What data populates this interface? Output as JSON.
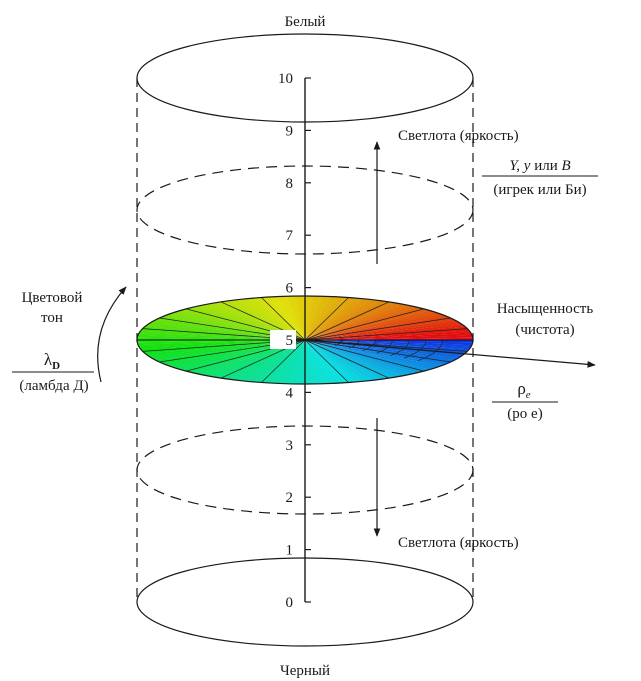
{
  "top_label": "Белый",
  "bottom_label": "Черный",
  "scale_ticks": [
    "0",
    "1",
    "2",
    "3",
    "4",
    "5",
    "6",
    "7",
    "8",
    "9",
    "10"
  ],
  "lightness_up": {
    "label": "Светлота  (яркость)"
  },
  "lightness_down": {
    "label": "Светлота  (яркость)"
  },
  "lightness_symbol": {
    "symbols": "Y, y",
    "connector": " или ",
    "b_symbol": "B",
    "reading": "(игрек или Би)"
  },
  "hue": {
    "line1": "Цветовой",
    "line2": "тон",
    "symbol": "λ",
    "subscript": "D",
    "reading": "(ламбда Д)"
  },
  "saturation": {
    "line1": "Насыщенность",
    "line2": "(чистота)",
    "symbol": "ρ",
    "subscript": "e",
    "reading": "(ро е)"
  }
}
